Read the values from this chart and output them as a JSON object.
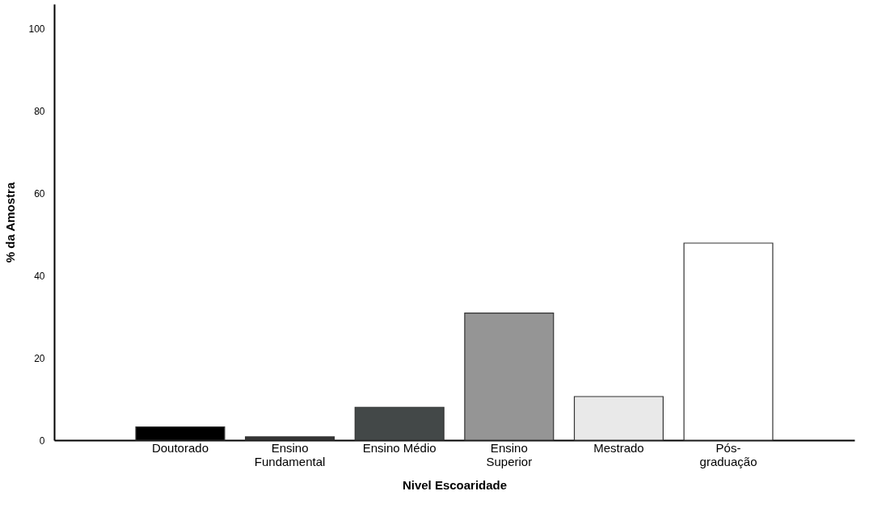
{
  "chart_data": {
    "type": "bar",
    "xlabel": "Nivel Escoaridade",
    "ylabel": "% da Amostra",
    "categories": [
      "Doutorado",
      "Ensino Fundamental",
      "Ensino Médio",
      "Ensino Superior",
      "Mestrado",
      "Pós-graduação"
    ],
    "values": [
      3.2,
      0.8,
      8.0,
      30.9,
      10.6,
      47.9
    ],
    "colors": [
      "#000000",
      "#353535",
      "#434848",
      "#959595",
      "#e9e9e9",
      "#ffffff"
    ],
    "ylim": [
      0,
      106
    ],
    "yticks": [
      0,
      20,
      40,
      60,
      80,
      100
    ]
  }
}
